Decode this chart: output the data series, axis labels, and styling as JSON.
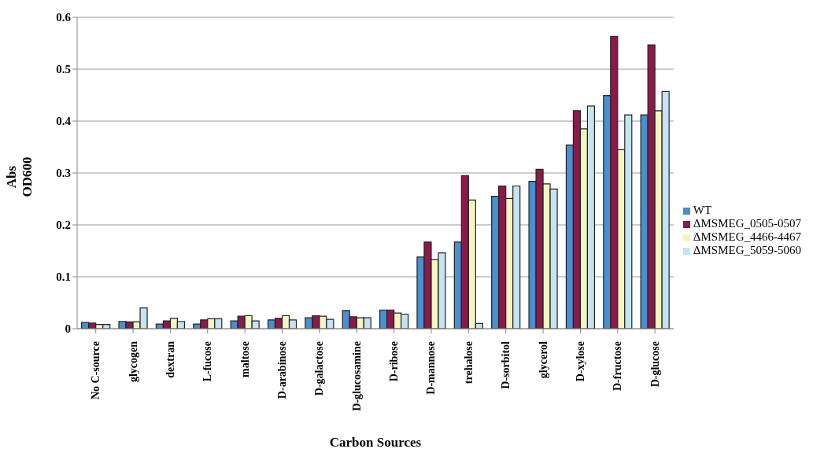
{
  "chart_data": {
    "type": "bar",
    "xlabel": "Carbon Sources",
    "ylabel": "Abs\nOD600",
    "categories": [
      "No C-source",
      "glycogen",
      "dextran",
      "L-fucose",
      "maltose",
      "D-arabinose",
      "D-galactose",
      "D-glucosamine",
      "D-ribose",
      "D-mannose",
      "trehalose",
      "D-sorbitol",
      "glycerol",
      "D-xylose",
      "D-fructose",
      "D-glucose"
    ],
    "series": [
      {
        "name": "WT",
        "color": "#4a8fd0",
        "values": [
          0.012,
          0.014,
          0.009,
          0.009,
          0.015,
          0.017,
          0.021,
          0.035,
          0.036,
          0.138,
          0.167,
          0.255,
          0.284,
          0.354,
          0.449,
          0.412
        ]
      },
      {
        "name": "ΔMSMEG_0505-0507",
        "color": "#8b1a4a",
        "values": [
          0.011,
          0.013,
          0.015,
          0.017,
          0.024,
          0.02,
          0.025,
          0.023,
          0.036,
          0.167,
          0.295,
          0.275,
          0.307,
          0.42,
          0.563,
          0.547
        ]
      },
      {
        "name": "ΔMSMEG_4466-4467",
        "color": "#f5f5c0",
        "values": [
          0.008,
          0.013,
          0.02,
          0.019,
          0.025,
          0.025,
          0.024,
          0.021,
          0.03,
          0.133,
          0.248,
          0.251,
          0.279,
          0.385,
          0.345,
          0.42
        ]
      },
      {
        "name": "ΔMSMEG_5059-5060",
        "color": "#c5e3f0",
        "values": [
          0.008,
          0.04,
          0.014,
          0.019,
          0.015,
          0.017,
          0.018,
          0.021,
          0.028,
          0.146,
          0.01,
          0.275,
          0.269,
          0.429,
          0.412,
          0.457
        ]
      }
    ],
    "ylim": [
      0,
      0.6
    ],
    "yticks": [
      0,
      0.1,
      0.2,
      0.3,
      0.4,
      0.5,
      0.6
    ],
    "grid": "y",
    "legend": "right"
  }
}
